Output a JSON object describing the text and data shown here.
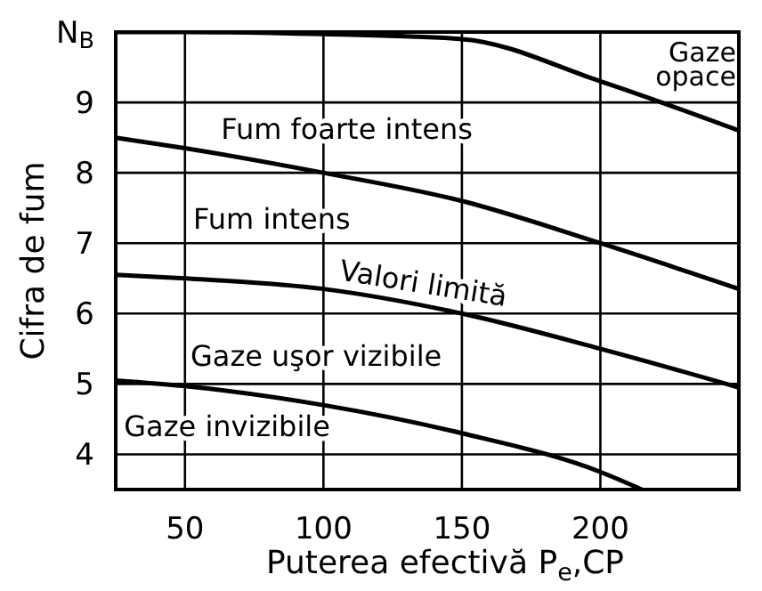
{
  "chart_data": {
    "type": "line",
    "xlabel": "Puterea efectivă P$_{e}$,CP",
    "ylabel": "Cifra de fum",
    "x": [
      25,
      50,
      100,
      150,
      200,
      250
    ],
    "series": [
      {
        "color": "#000000",
        "values": [
          10,
          10,
          9.97,
          9.9,
          9.3,
          8.6
        ]
      },
      {
        "color": "#000000",
        "values": [
          8.5,
          8.35,
          8.0,
          7.6,
          7.0,
          6.35
        ]
      },
      {
        "color": "#000000",
        "values": [
          6.55,
          6.5,
          6.35,
          6.0,
          5.5,
          4.95
        ]
      },
      {
        "color": "#000000",
        "x": [
          25,
          50,
          100,
          150,
          200,
          215
        ],
        "values": [
          5.05,
          4.97,
          4.7,
          4.3,
          3.75,
          3.5
        ]
      }
    ],
    "xlim": [
      25,
      250
    ],
    "ylim": [
      3.5,
      10
    ],
    "xticks": [
      50,
      100,
      150,
      200
    ],
    "yticks": [
      4,
      5,
      6,
      7,
      8,
      9,
      {
        "value": 10,
        "label": "N$_{B}$"
      }
    ],
    "grid": true,
    "marker": "none",
    "line_style": "solid",
    "annotations": [
      "Gaze opace",
      "Fum foarte intens",
      "Fum intens",
      "Valori limită",
      "Gaze uşor vizibile",
      "Gaze invizibile"
    ]
  }
}
